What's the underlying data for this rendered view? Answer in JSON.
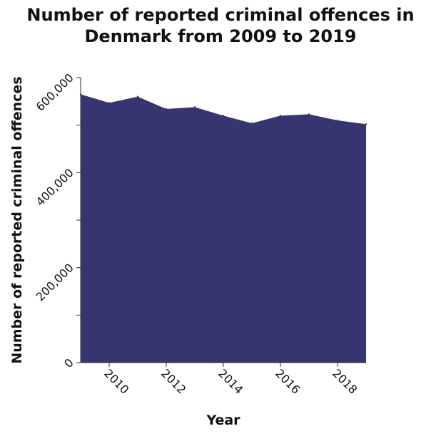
{
  "title_lines": [
    "Number of reported criminal offences in",
    "Denmark from 2009 to 2019"
  ],
  "chart_data": {
    "type": "area",
    "title": "Number of reported criminal offences in Denmark from 2009 to 2019",
    "xlabel": "Year",
    "ylabel": "Number of reported criminal offences",
    "x": [
      2009,
      2010,
      2011,
      2012,
      2013,
      2014,
      2015,
      2016,
      2017,
      2018,
      2019
    ],
    "values": [
      565000,
      547000,
      560000,
      534000,
      538000,
      520000,
      504000,
      520000,
      523000,
      510000,
      502000
    ],
    "xlim": [
      2009,
      2019
    ],
    "ylim": [
      0,
      600000
    ],
    "x_ticks": [
      2010,
      2012,
      2014,
      2016,
      2018
    ],
    "y_ticks": [
      0,
      100000,
      200000,
      300000,
      400000,
      500000,
      600000
    ],
    "y_tick_labels": [
      "0",
      "",
      "200,000",
      "",
      "400,000",
      "",
      "600,000"
    ],
    "fill_color": "#363570",
    "grid": false,
    "legend": "none"
  }
}
